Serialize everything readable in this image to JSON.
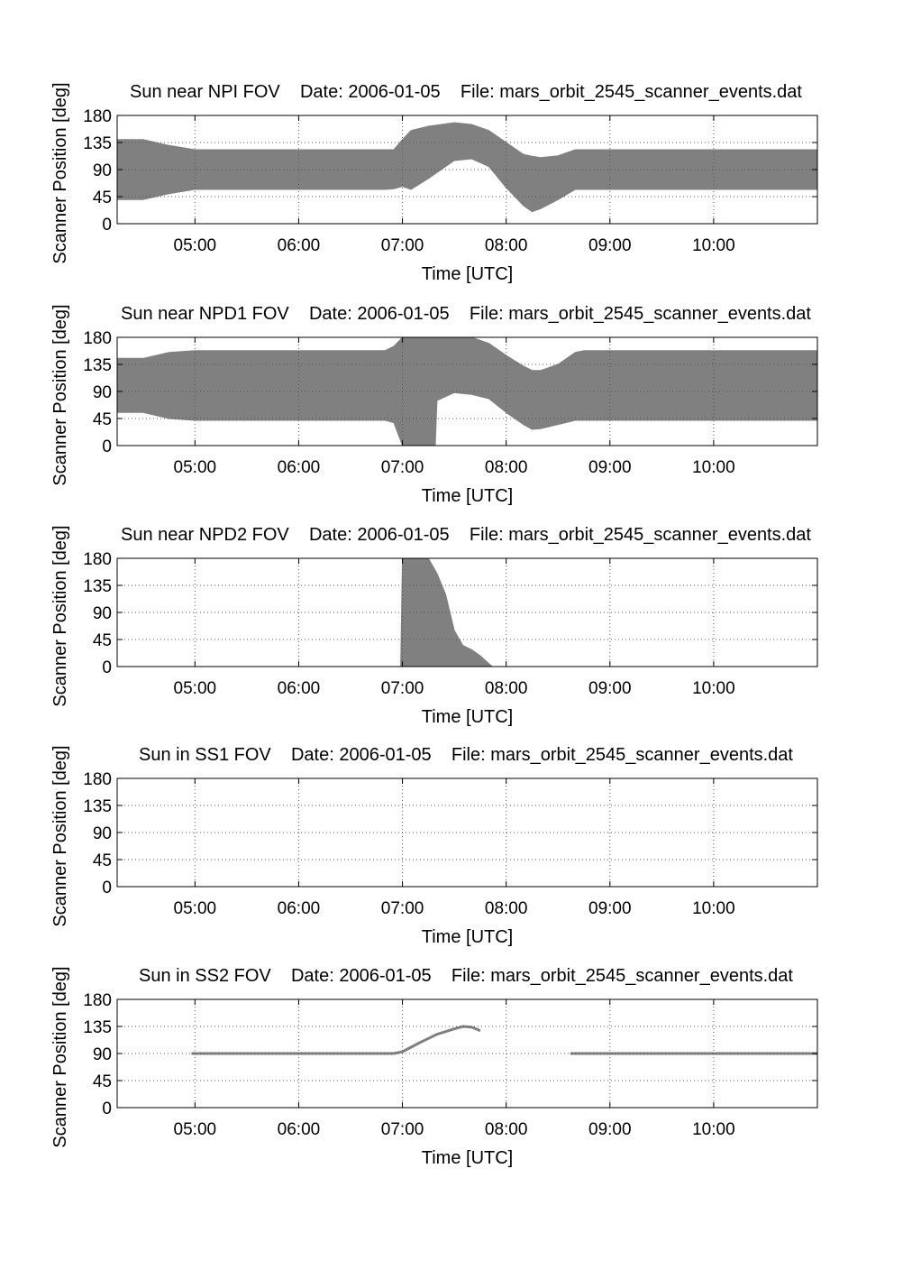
{
  "colors": {
    "fill": "#808080",
    "axis": "#000000",
    "grid": "#555555",
    "background": "#ffffff"
  },
  "chart_data": [
    {
      "type": "area",
      "title": "Sun near NPI FOV    Date: 2006-01-05    File: mars_orbit_2545_scanner_events.dat",
      "xlabel": "Time [UTC]",
      "ylabel": "Scanner Position [deg]",
      "xlim": [
        "04:15",
        "11:00"
      ],
      "ylim": [
        0,
        180
      ],
      "xticks": [
        "05:00",
        "06:00",
        "07:00",
        "08:00",
        "09:00",
        "10:00"
      ],
      "yticks": [
        "0",
        "45",
        "90",
        "135",
        "180"
      ],
      "grid": true,
      "series": [
        {
          "points": [
            [
              "04:15",
              40,
              140
            ],
            [
              "04:30",
              40,
              140
            ],
            [
              "04:45",
              50,
              130
            ],
            [
              "05:00",
              57,
              123
            ],
            [
              "05:30",
              57,
              123
            ],
            [
              "06:00",
              57,
              123
            ],
            [
              "06:30",
              57,
              123
            ],
            [
              "06:50",
              57,
              123
            ],
            [
              "06:55",
              58,
              123
            ],
            [
              "07:00",
              62,
              140
            ],
            [
              "07:05",
              57,
              155
            ],
            [
              "07:15",
              75,
              162
            ],
            [
              "07:30",
              105,
              168
            ],
            [
              "07:40",
              108,
              165
            ],
            [
              "07:50",
              95,
              155
            ],
            [
              "08:00",
              60,
              135
            ],
            [
              "08:10",
              30,
              115
            ],
            [
              "08:15",
              20,
              112
            ],
            [
              "08:20",
              25,
              110
            ],
            [
              "08:30",
              40,
              113
            ],
            [
              "08:40",
              57,
              123
            ],
            [
              "09:00",
              57,
              123
            ],
            [
              "10:00",
              57,
              123
            ],
            [
              "11:00",
              57,
              123
            ]
          ]
        }
      ]
    },
    {
      "type": "area",
      "title": "Sun near NPD1 FOV    Date: 2006-01-05    File: mars_orbit_2545_scanner_events.dat",
      "xlabel": "Time [UTC]",
      "ylabel": "Scanner Position [deg]",
      "xlim": [
        "04:15",
        "11:00"
      ],
      "ylim": [
        0,
        180
      ],
      "xticks": [
        "05:00",
        "06:00",
        "07:00",
        "08:00",
        "09:00",
        "10:00"
      ],
      "yticks": [
        "0",
        "45",
        "90",
        "135",
        "180"
      ],
      "grid": true,
      "series": [
        {
          "points": [
            [
              "04:15",
              55,
              145
            ],
            [
              "04:30",
              55,
              145
            ],
            [
              "04:45",
              45,
              155
            ],
            [
              "05:00",
              42,
              158
            ],
            [
              "06:00",
              42,
              158
            ],
            [
              "06:50",
              42,
              158
            ],
            [
              "06:55",
              38,
              165
            ],
            [
              "07:00",
              0,
              180
            ],
            [
              "07:05",
              0,
              180
            ],
            [
              "07:10",
              0,
              180
            ],
            [
              "07:15",
              0,
              180
            ],
            [
              "07:19",
              0,
              180
            ],
            [
              "07:20",
              75,
              180
            ],
            [
              "07:30",
              88,
              180
            ],
            [
              "07:40",
              85,
              180
            ],
            [
              "07:50",
              78,
              170
            ],
            [
              "08:00",
              55,
              150
            ],
            [
              "08:10",
              35,
              132
            ],
            [
              "08:15",
              27,
              125
            ],
            [
              "08:20",
              28,
              125
            ],
            [
              "08:30",
              35,
              135
            ],
            [
              "08:40",
              42,
              155
            ],
            [
              "08:45",
              42,
              158
            ],
            [
              "09:00",
              42,
              158
            ],
            [
              "10:00",
              42,
              158
            ],
            [
              "11:00",
              42,
              158
            ]
          ]
        }
      ]
    },
    {
      "type": "area",
      "title": "Sun near NPD2 FOV    Date: 2006-01-05    File: mars_orbit_2545_scanner_events.dat",
      "xlabel": "Time [UTC]",
      "ylabel": "Scanner Position [deg]",
      "xlim": [
        "04:15",
        "11:00"
      ],
      "ylim": [
        0,
        180
      ],
      "xticks": [
        "05:00",
        "06:00",
        "07:00",
        "08:00",
        "09:00",
        "10:00"
      ],
      "yticks": [
        "0",
        "45",
        "90",
        "135",
        "180"
      ],
      "grid": true,
      "series": [
        {
          "points": [
            [
              "06:59",
              0,
              0
            ],
            [
              "07:00",
              0,
              180
            ],
            [
              "07:10",
              0,
              180
            ],
            [
              "07:15",
              0,
              180
            ],
            [
              "07:20",
              0,
              155
            ],
            [
              "07:25",
              0,
              120
            ],
            [
              "07:30",
              0,
              60
            ],
            [
              "07:35",
              0,
              35
            ],
            [
              "07:40",
              0,
              28
            ],
            [
              "07:45",
              0,
              18
            ],
            [
              "07:50",
              0,
              5
            ],
            [
              "07:52",
              0,
              0
            ]
          ]
        }
      ]
    },
    {
      "type": "area",
      "title": "Sun in SS1 FOV    Date: 2006-01-05    File: mars_orbit_2545_scanner_events.dat",
      "xlabel": "Time [UTC]",
      "ylabel": "Scanner Position [deg]",
      "xlim": [
        "04:15",
        "11:00"
      ],
      "ylim": [
        0,
        180
      ],
      "xticks": [
        "05:00",
        "06:00",
        "07:00",
        "08:00",
        "09:00",
        "10:00"
      ],
      "yticks": [
        "0",
        "45",
        "90",
        "135",
        "180"
      ],
      "grid": true,
      "series": []
    },
    {
      "type": "line",
      "title": "Sun in SS2 FOV    Date: 2006-01-05    File: mars_orbit_2545_scanner_events.dat",
      "xlabel": "Time [UTC]",
      "ylabel": "Scanner Position [deg]",
      "xlim": [
        "04:15",
        "11:00"
      ],
      "ylim": [
        0,
        180
      ],
      "xticks": [
        "05:00",
        "06:00",
        "07:00",
        "08:00",
        "09:00",
        "10:00"
      ],
      "yticks": [
        "0",
        "45",
        "90",
        "135",
        "180"
      ],
      "grid": true,
      "series": [
        {
          "points": [
            [
              "04:58",
              90
            ],
            [
              "06:00",
              90
            ],
            [
              "06:55",
              90
            ]
          ]
        },
        {
          "points": [
            [
              "06:55",
              90
            ],
            [
              "07:00",
              93
            ],
            [
              "07:10",
              108
            ],
            [
              "07:20",
              122
            ],
            [
              "07:30",
              131
            ],
            [
              "07:35",
              135
            ],
            [
              "07:40",
              134
            ],
            [
              "07:45",
              128
            ]
          ]
        },
        {
          "points": [
            [
              "08:37",
              90
            ],
            [
              "09:00",
              90
            ],
            [
              "10:00",
              90
            ],
            [
              "11:00",
              90
            ]
          ]
        }
      ]
    }
  ]
}
